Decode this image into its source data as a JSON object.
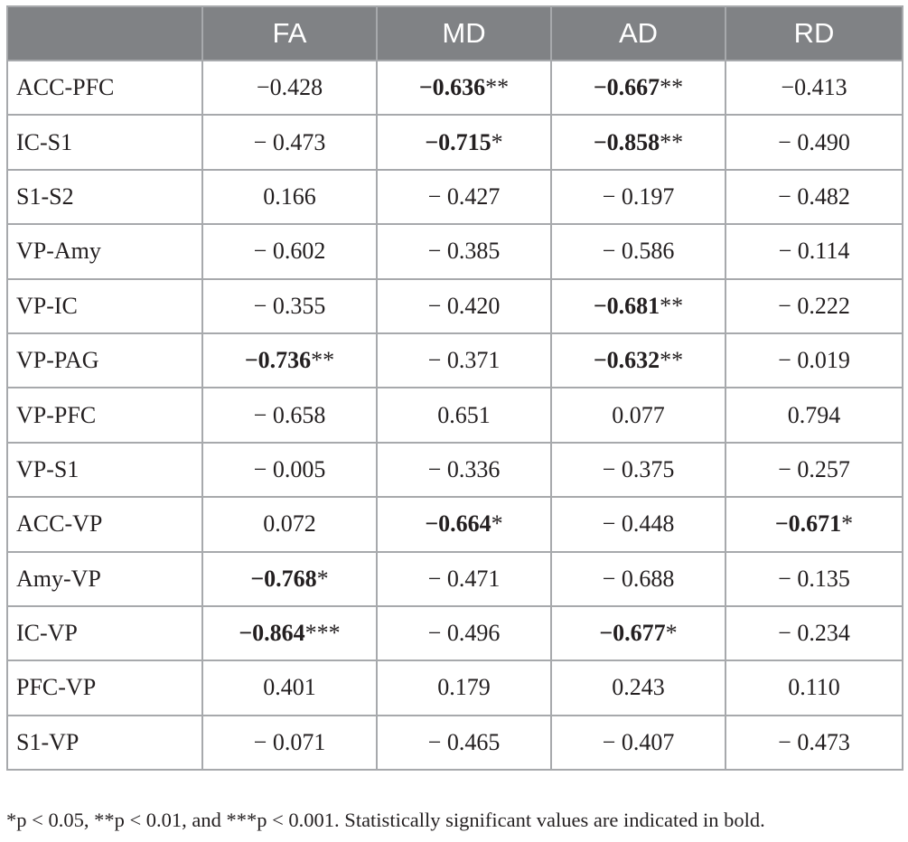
{
  "table": {
    "corner_header": "",
    "headers": [
      "FA",
      "MD",
      "AD",
      "RD"
    ],
    "rows": [
      {
        "label": "ACC-PFC",
        "cells": [
          {
            "value": "−0.428",
            "stars": "",
            "bold": false
          },
          {
            "value": "−0.636",
            "stars": "**",
            "bold": true
          },
          {
            "value": "−0.667",
            "stars": "**",
            "bold": true
          },
          {
            "value": "−0.413",
            "stars": "",
            "bold": false
          }
        ]
      },
      {
        "label": "IC-S1",
        "cells": [
          {
            "value": "− 0.473",
            "stars": "",
            "bold": false
          },
          {
            "value": "−0.715",
            "stars": "*",
            "bold": true
          },
          {
            "value": "−0.858",
            "stars": "**",
            "bold": true
          },
          {
            "value": "− 0.490",
            "stars": "",
            "bold": false
          }
        ]
      },
      {
        "label": "S1-S2",
        "cells": [
          {
            "value": "0.166",
            "stars": "",
            "bold": false
          },
          {
            "value": "− 0.427",
            "stars": "",
            "bold": false
          },
          {
            "value": "− 0.197",
            "stars": "",
            "bold": false
          },
          {
            "value": "− 0.482",
            "stars": "",
            "bold": false
          }
        ]
      },
      {
        "label": "VP-Amy",
        "cells": [
          {
            "value": "− 0.602",
            "stars": "",
            "bold": false
          },
          {
            "value": "− 0.385",
            "stars": "",
            "bold": false
          },
          {
            "value": "− 0.586",
            "stars": "",
            "bold": false
          },
          {
            "value": "− 0.114",
            "stars": "",
            "bold": false
          }
        ]
      },
      {
        "label": "VP-IC",
        "cells": [
          {
            "value": "− 0.355",
            "stars": "",
            "bold": false
          },
          {
            "value": "− 0.420",
            "stars": "",
            "bold": false
          },
          {
            "value": "−0.681",
            "stars": "**",
            "bold": true
          },
          {
            "value": "− 0.222",
            "stars": "",
            "bold": false
          }
        ]
      },
      {
        "label": "VP-PAG",
        "cells": [
          {
            "value": "−0.736",
            "stars": "**",
            "bold": true
          },
          {
            "value": "− 0.371",
            "stars": "",
            "bold": false
          },
          {
            "value": "−0.632",
            "stars": "**",
            "bold": true
          },
          {
            "value": "− 0.019",
            "stars": "",
            "bold": false
          }
        ]
      },
      {
        "label": "VP-PFC",
        "cells": [
          {
            "value": "− 0.658",
            "stars": "",
            "bold": false
          },
          {
            "value": "0.651",
            "stars": "",
            "bold": false
          },
          {
            "value": "0.077",
            "stars": "",
            "bold": false
          },
          {
            "value": "0.794",
            "stars": "",
            "bold": false
          }
        ]
      },
      {
        "label": "VP-S1",
        "cells": [
          {
            "value": "− 0.005",
            "stars": "",
            "bold": false
          },
          {
            "value": "− 0.336",
            "stars": "",
            "bold": false
          },
          {
            "value": "− 0.375",
            "stars": "",
            "bold": false
          },
          {
            "value": "− 0.257",
            "stars": "",
            "bold": false
          }
        ]
      },
      {
        "label": "ACC-VP",
        "cells": [
          {
            "value": "0.072",
            "stars": "",
            "bold": false
          },
          {
            "value": "−0.664",
            "stars": "*",
            "bold": true
          },
          {
            "value": "− 0.448",
            "stars": "",
            "bold": false
          },
          {
            "value": "−0.671",
            "stars": "*",
            "bold": true
          }
        ]
      },
      {
        "label": "Amy-VP",
        "cells": [
          {
            "value": "−0.768",
            "stars": "*",
            "bold": true
          },
          {
            "value": "− 0.471",
            "stars": "",
            "bold": false
          },
          {
            "value": "− 0.688",
            "stars": "",
            "bold": false
          },
          {
            "value": "− 0.135",
            "stars": "",
            "bold": false
          }
        ]
      },
      {
        "label": "IC-VP",
        "cells": [
          {
            "value": "−0.864",
            "stars": "***",
            "bold": true
          },
          {
            "value": "− 0.496",
            "stars": "",
            "bold": false
          },
          {
            "value": "−0.677",
            "stars": "*",
            "bold": true
          },
          {
            "value": "− 0.234",
            "stars": "",
            "bold": false
          }
        ]
      },
      {
        "label": "PFC-VP",
        "cells": [
          {
            "value": "0.401",
            "stars": "",
            "bold": false
          },
          {
            "value": "0.179",
            "stars": "",
            "bold": false
          },
          {
            "value": "0.243",
            "stars": "",
            "bold": false
          },
          {
            "value": "0.110",
            "stars": "",
            "bold": false
          }
        ]
      },
      {
        "label": "S1-VP",
        "cells": [
          {
            "value": "− 0.071",
            "stars": "",
            "bold": false
          },
          {
            "value": "− 0.465",
            "stars": "",
            "bold": false
          },
          {
            "value": "− 0.407",
            "stars": "",
            "bold": false
          },
          {
            "value": "− 0.473",
            "stars": "",
            "bold": false
          }
        ]
      }
    ]
  },
  "footnote": "*p < 0.05, **p < 0.01, and ***p < 0.001. Statistically significant values are indicated in bold.",
  "colors": {
    "header_background": "#808285",
    "header_text": "#ffffff",
    "grid_lines": "#a7a9ac",
    "body_text": "#231f20"
  }
}
